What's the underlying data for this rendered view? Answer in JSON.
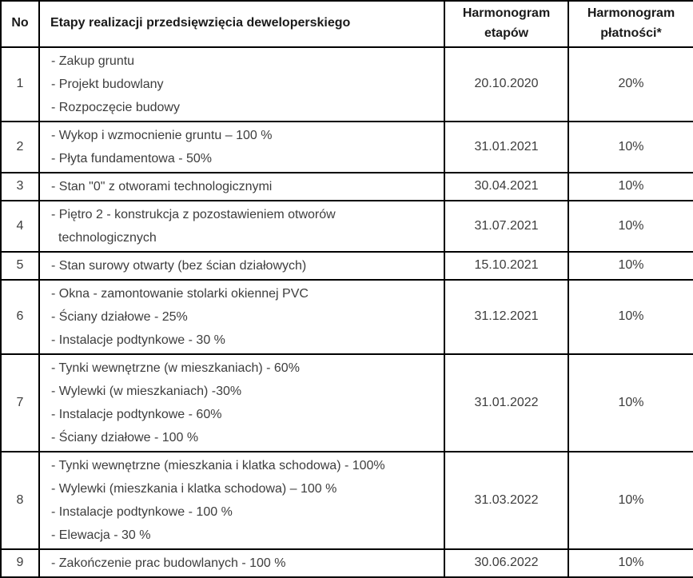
{
  "table": {
    "headers": {
      "no": "No",
      "stages": "Etapy realizacji przedsięwzięcia deweloperskiego",
      "schedule": "Harmonogram etapów",
      "payments": "Harmonogram płatności*"
    },
    "rows": [
      {
        "no": "1",
        "stages": [
          "- Zakup gruntu",
          "- Projekt budowlany",
          "- Rozpoczęcie budowy"
        ],
        "date": "20.10.2020",
        "payment": "20%"
      },
      {
        "no": "2",
        "stages": [
          "- Wykop i wzmocnienie gruntu – 100 %",
          "- Płyta fundamentowa - 50%"
        ],
        "date": "31.01.2021",
        "payment": "10%"
      },
      {
        "no": "3",
        "stages": [
          "- Stan \"0\" z otworami technologicznymi"
        ],
        "date": "30.04.2021",
        "payment": "10%"
      },
      {
        "no": "4",
        "stages": [
          "- Piętro 2 - konstrukcja z pozostawieniem otworów technologicznych"
        ],
        "date": "31.07.2021",
        "payment": "10%"
      },
      {
        "no": "5",
        "stages": [
          "- Stan surowy otwarty (bez ścian działowych)"
        ],
        "date": "15.10.2021",
        "payment": "10%"
      },
      {
        "no": "6",
        "stages": [
          "- Okna - zamontowanie stolarki okiennej PVC",
          "- Ściany działowe - 25%",
          "- Instalacje podtynkowe - 30 %"
        ],
        "date": "31.12.2021",
        "payment": "10%"
      },
      {
        "no": "7",
        "stages": [
          "- Tynki wewnętrzne (w mieszkaniach) - 60%",
          "- Wylewki (w mieszkaniach) -30%",
          "- Instalacje podtynkowe - 60%",
          "- Ściany działowe - 100 %"
        ],
        "date": "31.01.2022",
        "payment": "10%"
      },
      {
        "no": "8",
        "stages": [
          "- Tynki wewnętrzne (mieszkania i klatka schodowa) - 100%",
          "- Wylewki (mieszkania i klatka schodowa) – 100 %",
          "- Instalacje podtynkowe - 100 %",
          "- Elewacja - 30 %"
        ],
        "date": "31.03.2022",
        "payment": "10%"
      },
      {
        "no": "9",
        "stages": [
          "- Zakończenie prac budowlanych - 100 %"
        ],
        "date": "30.06.2022",
        "payment": "10%"
      }
    ]
  }
}
